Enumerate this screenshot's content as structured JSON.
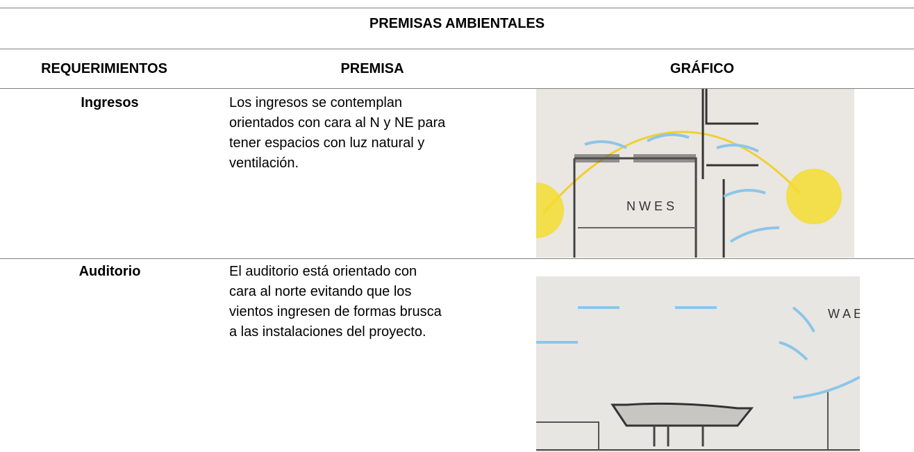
{
  "table": {
    "title": "PREMISAS AMBIENTALES",
    "columns": [
      "REQUERIMIENTOS",
      "PREMISA",
      "GRÁFICO"
    ],
    "rows": [
      {
        "requirement": "Ingresos",
        "premise": [
          "Los ingresos se contemplan",
          "orientados con cara al N y NE para",
          "tener espacios con luz natural y",
          "ventilación."
        ]
      },
      {
        "requirement": "Auditorio",
        "premise": [
          "El auditorio está orientado con",
          "cara al norte evitando que los",
          "vientos ingresen de formas brusca",
          "a las instalaciones del proyecto."
        ]
      }
    ]
  }
}
